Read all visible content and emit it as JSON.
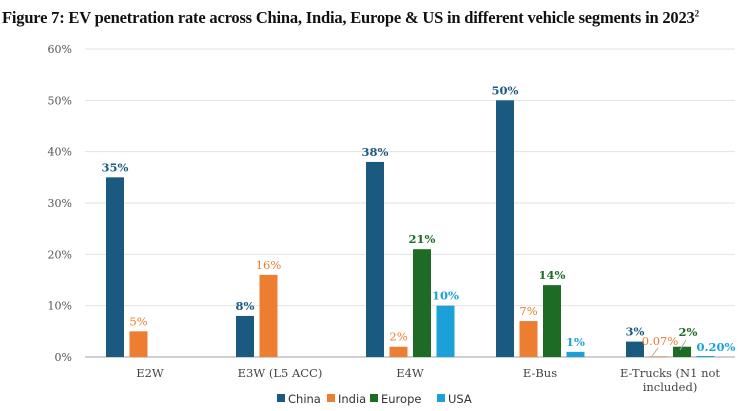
{
  "title": "Figure 7: EV penetration rate across China, India, Europe & US in different vehicle segments in 2023",
  "title_superscript": "2",
  "chart_data": {
    "type": "bar",
    "title": "Figure 7: EV penetration rate across China, India, Europe & US in different vehicle segments in 2023",
    "categories": [
      "E2W",
      "E3W (L5 ACC)",
      "E4W",
      "E-Bus",
      "E-Trucks (N1 not included)"
    ],
    "ylim": [
      0,
      60
    ],
    "yticks": [
      "0%",
      "10%",
      "20%",
      "30%",
      "40%",
      "50%",
      "60%"
    ],
    "grid": true,
    "legend_position": "bottom",
    "series": [
      {
        "name": "China",
        "color": "#1a5a80",
        "values": [
          35,
          8,
          38,
          50,
          3
        ],
        "labels": [
          "35%",
          "8%",
          "38%",
          "50%",
          "3%"
        ]
      },
      {
        "name": "India",
        "color": "#ed7d31",
        "values": [
          5,
          16,
          2,
          7,
          0.07
        ],
        "labels": [
          "5%",
          "16%",
          "2%",
          "7%",
          "0.07%"
        ]
      },
      {
        "name": "Europe",
        "color": "#1e6b25",
        "values": [
          null,
          null,
          21,
          14,
          2
        ],
        "labels": [
          "",
          "",
          "21%",
          "14%",
          "2%"
        ]
      },
      {
        "name": "USA",
        "color": "#1ba1d8",
        "values": [
          null,
          null,
          10,
          1,
          0.2
        ],
        "labels": [
          "",
          "",
          "10%",
          "1%",
          "0.20%"
        ]
      }
    ]
  }
}
